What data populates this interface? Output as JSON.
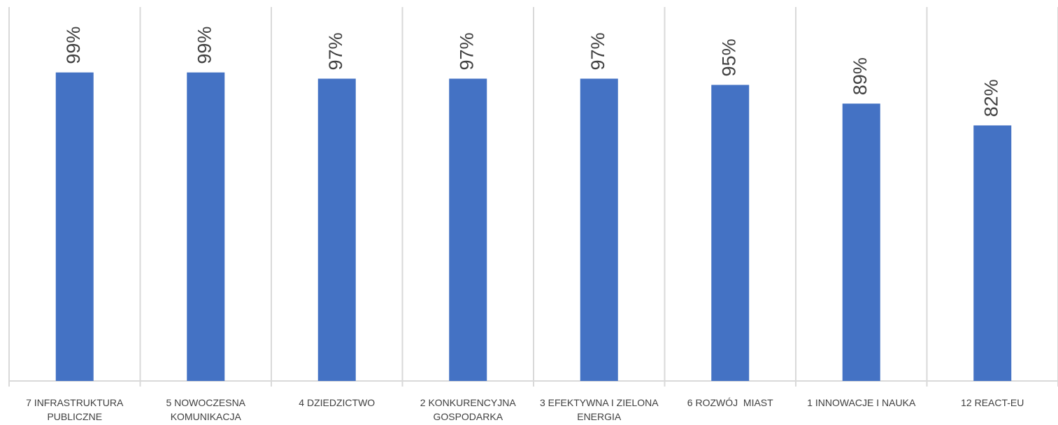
{
  "chart_data": {
    "type": "bar",
    "categories": [
      "7 INFRASTRUKTURA PUBLICZNE",
      "5 NOWOCZESNA KOMUNIKACJA",
      "4 DZIEDZICTWO",
      "2 KONKURENCYJNA GOSPODARKA",
      "3 EFEKTYWNA I ZIELONA ENERGIA",
      "6 ROZWÓJ  MIAST",
      "1 INNOWACJE I NAUKA",
      "12 REACT-EU"
    ],
    "values": [
      99,
      99,
      97,
      97,
      97,
      95,
      89,
      82
    ],
    "value_labels": [
      "99%",
      "99%",
      "97%",
      "97%",
      "97%",
      "95%",
      "89%",
      "82%"
    ],
    "color": "#4472c4",
    "ylim": [
      0,
      120
    ]
  }
}
